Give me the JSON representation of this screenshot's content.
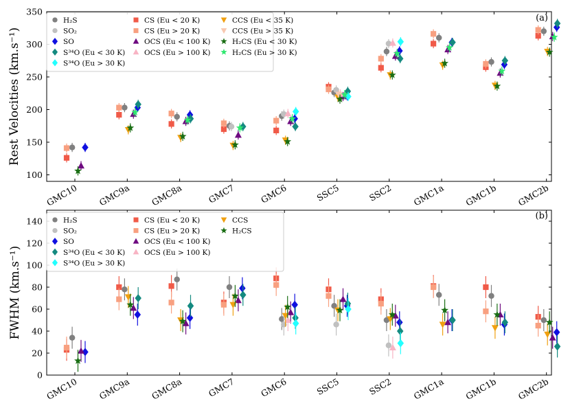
{
  "chart_data": [
    {
      "panel_id": "a",
      "type": "scatter",
      "panel_label": "(a)",
      "ylabel": "Rest Velocities (km.s⁻¹)",
      "xlabel": "",
      "ylim": [
        90,
        350
      ],
      "yticks": [
        100,
        150,
        200,
        250,
        300,
        350
      ],
      "categories": [
        "GMC10",
        "GMC9a",
        "GMC8a",
        "GMC7",
        "GMC6",
        "SSC5",
        "SSC2",
        "GMC1a",
        "GMC1b",
        "GMC2b"
      ],
      "legend": {
        "placement": "top-left",
        "columns": 3,
        "order": [
          "H2S",
          "SO2",
          "SO",
          "S34O_lt",
          "S34O_gt",
          "CS_lt",
          "CS_gt",
          "OCS_lt",
          "OCS_gt",
          "CCS_lt",
          "CCS_gt",
          "H2CS_lt",
          "H2CS_gt"
        ]
      },
      "series": [
        {
          "key": "H2S",
          "name": "H₂S",
          "marker": "circle",
          "color": "#808080",
          "offset": 0.27,
          "values": [
            142,
            203,
            189,
            175,
            190,
            226,
            289,
            310,
            273,
            320
          ],
          "errors": [
            7,
            7,
            7,
            7,
            7,
            7,
            7,
            7,
            7,
            7
          ]
        },
        {
          "key": "SO2",
          "name": "SO₂",
          "marker": "circle",
          "color": "#c0c0c0",
          "offset": 0.37,
          "values": [
            null,
            null,
            null,
            174,
            193,
            230,
            301,
            null,
            null,
            null
          ],
          "errors": [
            null,
            null,
            null,
            7,
            7,
            7,
            7,
            null,
            null,
            null
          ]
        },
        {
          "key": "SO",
          "name": "SO",
          "marker": "diamond",
          "color": "#1010e0",
          "offset": 0.9,
          "values": [
            142,
            203,
            192,
            null,
            186,
            221,
            290,
            303,
            269,
            326
          ],
          "errors": [
            7,
            7,
            7,
            null,
            7,
            7,
            7,
            7,
            7,
            7
          ]
        },
        {
          "key": "S34O_lt",
          "name": "S³⁴O (Eu < 30 K)",
          "marker": "diamond",
          "color": "#148a80",
          "offset": 0.93,
          "values": [
            null,
            208,
            186,
            174,
            174,
            228,
            278,
            303,
            275,
            332
          ],
          "errors": [
            null,
            7,
            7,
            7,
            7,
            7,
            7,
            7,
            7,
            7
          ]
        },
        {
          "key": "S34O_gt",
          "name": "S³⁴O (Eu > 30 K)",
          "marker": "diamond",
          "color": "#22ffff",
          "offset": 0.95,
          "values": [
            null,
            null,
            null,
            null,
            197,
            220,
            304,
            null,
            null,
            null
          ],
          "errors": [
            null,
            null,
            null,
            null,
            7,
            7,
            7,
            null,
            null,
            null
          ]
        },
        {
          "key": "CS_lt",
          "name": "CS (Eu < 20 K)",
          "marker": "square",
          "color": "#f05a48",
          "offset": 0.0,
          "values": [
            126,
            192,
            178,
            170,
            168,
            235,
            264,
            301,
            265,
            313
          ],
          "errors": [
            7,
            7,
            7,
            7,
            7,
            7,
            7,
            7,
            7,
            7
          ]
        },
        {
          "key": "CS_gt",
          "name": "CS (Eu > 20 K)",
          "marker": "square",
          "color": "#f8a080",
          "offset": 0.0,
          "values": [
            141,
            203,
            194,
            179,
            183,
            231,
            278,
            316,
            270,
            322
          ],
          "errors": [
            7,
            7,
            7,
            7,
            7,
            7,
            7,
            7,
            7,
            7
          ]
        },
        {
          "key": "OCS_lt",
          "name": "OCS (Eu < 100 K)",
          "marker": "triangle-up",
          "color": "#6e0a80",
          "offset": 0.7,
          "values": [
            114,
            193,
            182,
            161,
            182,
            220,
            282,
            292,
            256,
            312
          ],
          "errors": [
            7,
            7,
            7,
            7,
            7,
            7,
            7,
            7,
            7,
            7
          ]
        },
        {
          "key": "OCS_gt",
          "name": "OCS (Eu > 100 K)",
          "marker": "triangle-up",
          "color": "#f8b4c4",
          "offset": 0.57,
          "values": [
            null,
            null,
            null,
            null,
            194,
            224,
            302,
            null,
            null,
            null
          ],
          "errors": [
            null,
            null,
            null,
            null,
            7,
            7,
            7,
            null,
            null,
            null
          ]
        },
        {
          "key": "CCS_lt",
          "name": "CCS (Eu < 35 K)",
          "marker": "triangle-down",
          "color": "#f0a010",
          "offset": 0.45,
          "values": [
            null,
            169,
            157,
            145,
            153,
            219,
            253,
            268,
            237,
            289
          ],
          "errors": [
            null,
            7,
            7,
            7,
            7,
            7,
            7,
            7,
            7,
            7
          ]
        },
        {
          "key": "CCS_gt",
          "name": "CCS (Eu > 35 K)",
          "marker": "triangle-down",
          "color": "#f8c8b0",
          "offset": 0.5,
          "values": [
            null,
            null,
            null,
            null,
            null,
            223,
            null,
            null,
            null,
            null
          ],
          "errors": [
            null,
            null,
            null,
            null,
            null,
            7,
            null,
            null,
            null,
            null
          ]
        },
        {
          "key": "H2CS_lt",
          "name": "H₂CS (Eu < 30 K)",
          "marker": "star",
          "color": "#1a6e14",
          "offset": 0.55,
          "values": [
            106,
            172,
            159,
            146,
            151,
            216,
            253,
            271,
            236,
            288
          ],
          "errors": [
            7,
            7,
            7,
            7,
            7,
            7,
            7,
            7,
            7,
            7
          ]
        },
        {
          "key": "H2CS_gt",
          "name": "H₂CS (Eu > 30 K)",
          "marker": "star",
          "color": "#30e870",
          "offset": 0.78,
          "values": [
            null,
            196,
            184,
            172,
            186,
            223,
            286,
            295,
            259,
            311
          ],
          "errors": [
            null,
            7,
            7,
            7,
            7,
            7,
            7,
            7,
            7,
            7
          ]
        }
      ]
    },
    {
      "panel_id": "b",
      "type": "scatter",
      "panel_label": "(b)",
      "ylabel": "FWHM (km.s⁻¹)",
      "xlabel": "",
      "ylim": [
        0,
        150
      ],
      "yticks": [
        0,
        20,
        40,
        60,
        80,
        100,
        120,
        140
      ],
      "categories": [
        "GMC10",
        "GMC9a",
        "GMC8a",
        "GMC7",
        "GMC6",
        "SSC5",
        "SSC2",
        "GMC1a",
        "GMC1b",
        "GMC2b"
      ],
      "legend": {
        "placement": "top-left",
        "columns": 3,
        "order": [
          "H2S",
          "SO2",
          "SO",
          "S34O_lt",
          "S34O_gt",
          "CS_lt",
          "CS_gt",
          "OCS_lt",
          "OCS_gt",
          "CCS",
          "H2CS"
        ]
      },
      "series": [
        {
          "key": "H2S",
          "name": "H₂S",
          "marker": "circle",
          "color": "#808080",
          "offset": 0.27,
          "values": [
            34,
            78,
            87,
            80,
            51,
            63,
            50,
            73,
            72,
            50
          ],
          "errors": [
            10,
            10,
            10,
            10,
            10,
            10,
            10,
            10,
            10,
            10
          ]
        },
        {
          "key": "SO2",
          "name": "SO₂",
          "marker": "circle",
          "color": "#c0c0c0",
          "offset": 0.37,
          "values": [
            null,
            null,
            null,
            null,
            46,
            46,
            27,
            null,
            null,
            null
          ],
          "errors": [
            null,
            null,
            null,
            null,
            10,
            10,
            10,
            null,
            null,
            null
          ]
        },
        {
          "key": "SO",
          "name": "SO",
          "marker": "diamond",
          "color": "#1010e0",
          "offset": 0.9,
          "values": [
            21,
            55,
            52,
            79,
            64,
            63,
            48,
            50,
            46,
            39
          ],
          "errors": [
            10,
            10,
            10,
            10,
            10,
            10,
            10,
            10,
            10,
            10
          ]
        },
        {
          "key": "S34O_lt",
          "name": "S³⁴O (Eu < 30 K)",
          "marker": "diamond",
          "color": "#148a80",
          "offset": 0.93,
          "values": [
            null,
            70,
            63,
            73,
            52,
            65,
            40,
            50,
            48,
            26
          ],
          "errors": [
            null,
            10,
            10,
            10,
            10,
            10,
            10,
            10,
            10,
            10
          ]
        },
        {
          "key": "S34O_gt",
          "name": "S³⁴O (Eu > 30 K)",
          "marker": "diamond",
          "color": "#22ffff",
          "offset": 0.95,
          "values": [
            null,
            null,
            null,
            null,
            47,
            60,
            29,
            null,
            null,
            null
          ],
          "errors": [
            null,
            null,
            null,
            null,
            10,
            10,
            10,
            null,
            null,
            null
          ]
        },
        {
          "key": "CS_lt",
          "name": "CS (Eu < 20 K)",
          "marker": "square",
          "color": "#f05a48",
          "offset": 0.0,
          "values": [
            23,
            80,
            81,
            66,
            88,
            78,
            69,
            81,
            80,
            53
          ],
          "errors": [
            10,
            10,
            10,
            10,
            10,
            10,
            10,
            10,
            10,
            10
          ]
        },
        {
          "key": "CS_gt",
          "name": "CS (Eu > 20 K)",
          "marker": "square",
          "color": "#f8a080",
          "offset": 0.0,
          "values": [
            25,
            69,
            66,
            64,
            82,
            72,
            65,
            80,
            58,
            45
          ],
          "errors": [
            10,
            10,
            10,
            10,
            10,
            10,
            10,
            10,
            10,
            10
          ]
        },
        {
          "key": "OCS_lt",
          "name": "OCS (Eu < 100 K)",
          "marker": "triangle-up",
          "color": "#6e0a80",
          "offset": 0.7,
          "values": [
            22,
            61,
            47,
            68,
            57,
            69,
            54,
            48,
            55,
            34
          ],
          "errors": [
            10,
            10,
            10,
            10,
            10,
            10,
            10,
            10,
            10,
            10
          ]
        },
        {
          "key": "OCS_gt",
          "name": "OCS (Eu > 100 K)",
          "marker": "triangle-up",
          "color": "#f8b4c4",
          "offset": 0.57,
          "values": [
            null,
            null,
            null,
            null,
            50,
            null,
            25,
            null,
            null,
            null
          ],
          "errors": [
            null,
            null,
            null,
            null,
            10,
            null,
            10,
            null,
            null,
            null
          ]
        },
        {
          "key": "CCS",
          "name": "CCS",
          "marker": "triangle-down",
          "color": "#f0a010",
          "offset": 0.45,
          "values": [
            null,
            71,
            50,
            64,
            54,
            59,
            51,
            46,
            43,
            37
          ],
          "errors": [
            null,
            10,
            10,
            10,
            10,
            10,
            10,
            10,
            10,
            10
          ]
        },
        {
          "key": "H2CS",
          "name": "H₂CS",
          "marker": "star",
          "color": "#1a6e14",
          "offset": 0.55,
          "values": [
            13,
            64,
            49,
            72,
            62,
            59,
            55,
            59,
            55,
            48
          ],
          "errors": [
            10,
            10,
            10,
            10,
            10,
            10,
            10,
            10,
            10,
            10
          ]
        }
      ]
    }
  ]
}
